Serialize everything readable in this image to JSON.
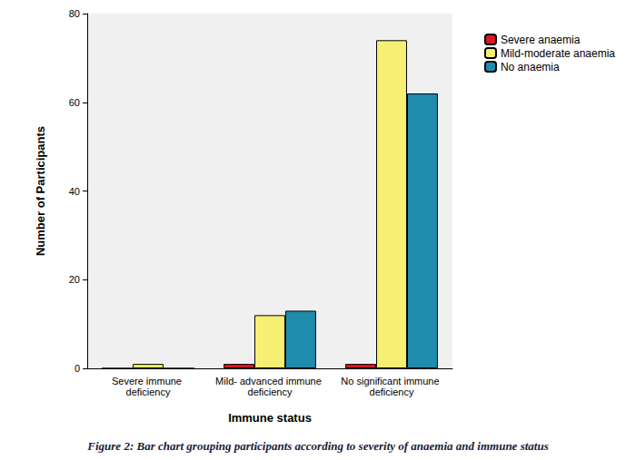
{
  "chart_data": {
    "type": "bar",
    "title": "Figure 2: Bar chart grouping participants according to severity of anaemia and immune status",
    "x_label": "Immune status",
    "y_label": "Number of Participants",
    "categories": [
      "Severe immune deficiency",
      "Mild- advanced immune deficiency",
      "No significant immune deficiency"
    ],
    "series": [
      {
        "name": "Severe anaemia",
        "color": "#d9172a",
        "values": [
          0,
          1,
          1
        ]
      },
      {
        "name": "Mild-moderate anaemia",
        "color": "#f6ef74",
        "values": [
          1,
          12,
          74
        ]
      },
      {
        "name": "No anaemia",
        "color": "#1f8bad",
        "values": [
          0,
          13,
          62
        ]
      }
    ],
    "ylim": [
      0,
      80
    ],
    "yticks": [
      0,
      20,
      40,
      60,
      80
    ],
    "grid": false,
    "legend": "top-right"
  }
}
